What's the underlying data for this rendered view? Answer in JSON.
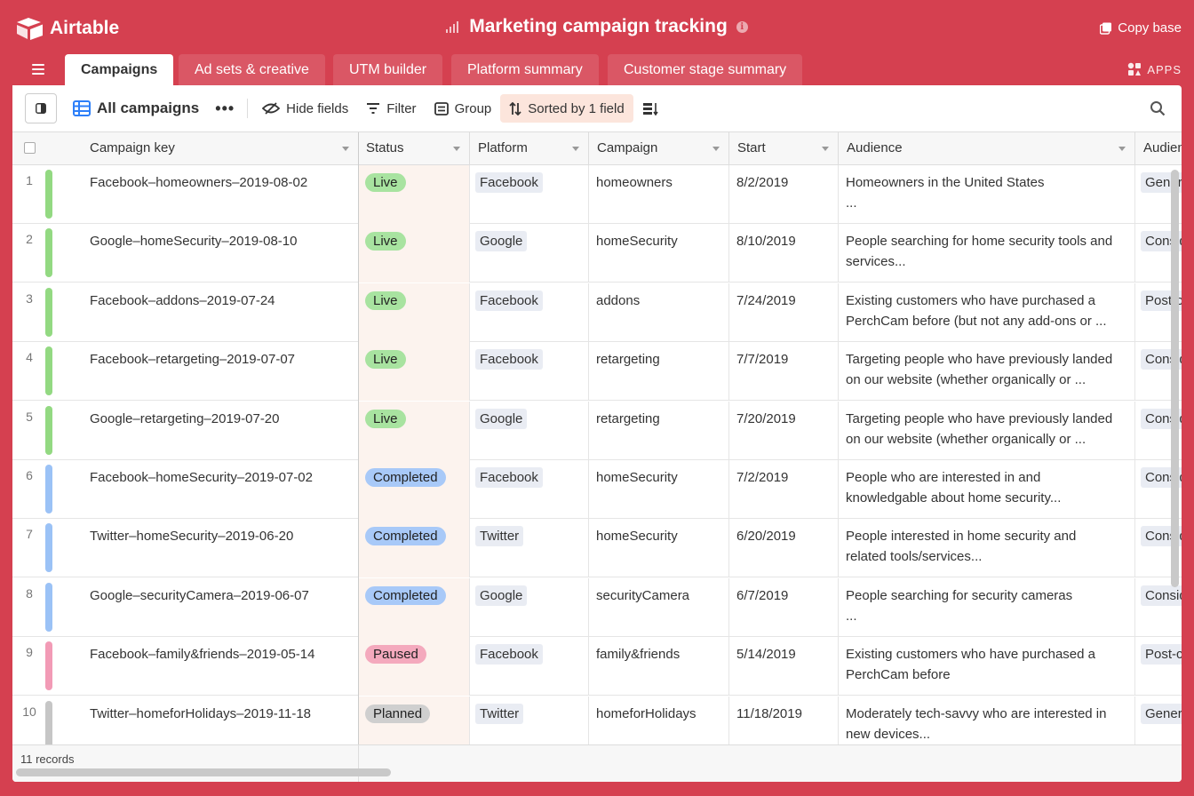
{
  "app": {
    "logo_text": "Airtable",
    "base_title": "Marketing campaign tracking",
    "copy_base_label": "Copy base",
    "apps_label": "APPS"
  },
  "tabs": [
    {
      "label": "Campaigns",
      "active": true
    },
    {
      "label": "Ad sets & creative",
      "active": false
    },
    {
      "label": "UTM builder",
      "active": false
    },
    {
      "label": "Platform summary",
      "active": false
    },
    {
      "label": "Customer stage summary",
      "active": false
    }
  ],
  "toolbar": {
    "view_name": "All campaigns",
    "more_label": "•••",
    "hide_fields_label": "Hide fields",
    "filter_label": "Filter",
    "group_label": "Group",
    "sort_label": "Sorted by 1 field"
  },
  "columns": [
    "Campaign key",
    "Status",
    "Platform",
    "Campaign",
    "Start",
    "Audience",
    "Audien"
  ],
  "status_colors": {
    "Live": "#a8e3a0",
    "Completed": "#a8c9f8",
    "Paused": "#f4a9bd",
    "Planned": "#cfcfcf"
  },
  "bar_colors": {
    "Live": "#93d982",
    "Completed": "#9bc2f6",
    "Paused": "#f29bb6",
    "Planned": "#c6c6c6"
  },
  "rows": [
    {
      "num": "1",
      "key": "Facebook–homeowners–2019-08-02",
      "status": "Live",
      "platform": "Facebook",
      "campaign": "homeowners",
      "start": "8/2/2019",
      "audience_line1": "Homeowners in the United States",
      "audience_line2": "...",
      "audience_type": "Genera"
    },
    {
      "num": "2",
      "key": "Google–homeSecurity–2019-08-10",
      "status": "Live",
      "platform": "Google",
      "campaign": "homeSecurity",
      "start": "8/10/2019",
      "audience_line1": "People searching for home security tools and",
      "audience_line2": "services...",
      "audience_type": "Consid"
    },
    {
      "num": "3",
      "key": "Facebook–addons–2019-07-24",
      "status": "Live",
      "platform": "Facebook",
      "campaign": "addons",
      "start": "7/24/2019",
      "audience_line1": "Existing customers who have purchased a",
      "audience_line2": "PerchCam before (but not any add-ons or ...",
      "audience_type": "Post-c"
    },
    {
      "num": "4",
      "key": "Facebook–retargeting–2019-07-07",
      "status": "Live",
      "platform": "Facebook",
      "campaign": "retargeting",
      "start": "7/7/2019",
      "audience_line1": "Targeting people who have previously landed",
      "audience_line2": "on our website (whether organically or ...",
      "audience_type": "Consid"
    },
    {
      "num": "5",
      "key": "Google–retargeting–2019-07-20",
      "status": "Live",
      "platform": "Google",
      "campaign": "retargeting",
      "start": "7/20/2019",
      "audience_line1": "Targeting people who have previously landed",
      "audience_line2": "on our website (whether organically or ...",
      "audience_type": "Consid"
    },
    {
      "num": "6",
      "key": "Facebook–homeSecurity–2019-07-02",
      "status": "Completed",
      "platform": "Facebook",
      "campaign": "homeSecurity",
      "start": "7/2/2019",
      "audience_line1": "People who are interested in and",
      "audience_line2": "knowledgable about home security...",
      "audience_type": "Consid"
    },
    {
      "num": "7",
      "key": "Twitter–homeSecurity–2019-06-20",
      "status": "Completed",
      "platform": "Twitter",
      "campaign": "homeSecurity",
      "start": "6/20/2019",
      "audience_line1": "People interested in home security and",
      "audience_line2": "related tools/services...",
      "audience_type": "Consid"
    },
    {
      "num": "8",
      "key": "Google–securityCamera–2019-06-07",
      "status": "Completed",
      "platform": "Google",
      "campaign": "securityCamera",
      "start": "6/7/2019",
      "audience_line1": "People searching for security cameras",
      "audience_line2": "...",
      "audience_type": "Consid"
    },
    {
      "num": "9",
      "key": "Facebook–family&friends–2019-05-14",
      "status": "Paused",
      "platform": "Facebook",
      "campaign": "family&friends",
      "start": "5/14/2019",
      "audience_line1": "Existing customers who have purchased a",
      "audience_line2": "PerchCam before",
      "audience_type": "Post-c"
    },
    {
      "num": "10",
      "key": "Twitter–homeforHolidays–2019-11-18",
      "status": "Planned",
      "platform": "Twitter",
      "campaign": "homeforHolidays",
      "start": "11/18/2019",
      "audience_line1": "Moderately tech-savvy who are interested in",
      "audience_line2": "new devices...",
      "audience_type": "Genera"
    }
  ],
  "footer": {
    "record_count": "11 records"
  }
}
